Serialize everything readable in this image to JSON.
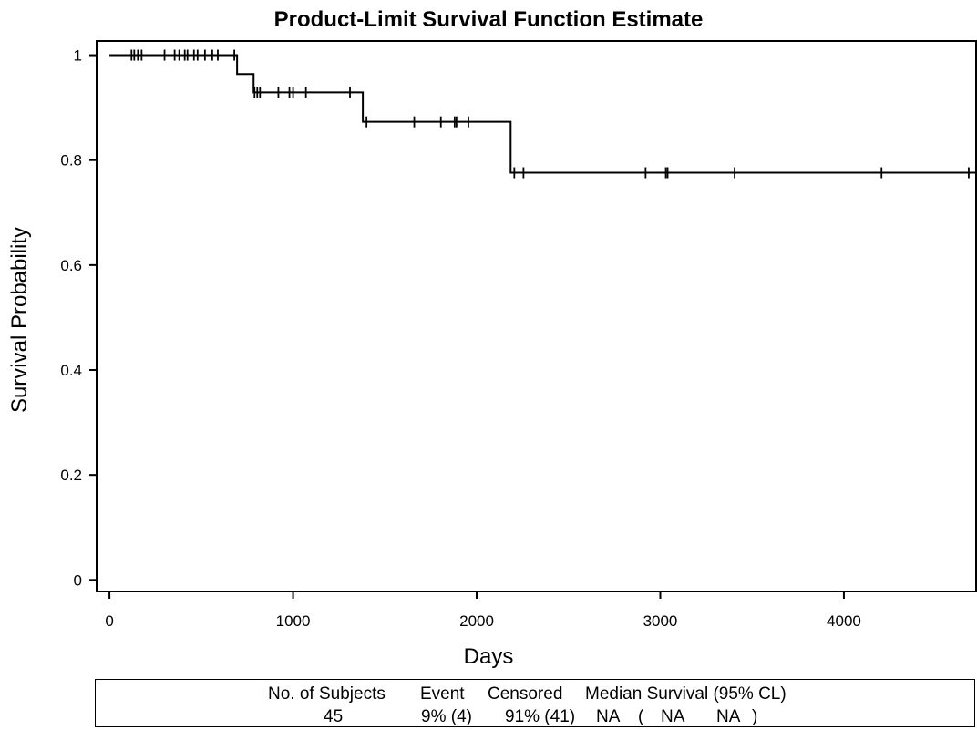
{
  "chart_data": {
    "type": "line",
    "title": "Product-Limit Survival Function Estimate",
    "xlabel": "Days",
    "ylabel": "Survival Probability",
    "xlim": [
      -70,
      4720
    ],
    "ylim": [
      -0.022,
      1.027
    ],
    "xticks": [
      0,
      1000,
      2000,
      3000,
      4000
    ],
    "xtick_labels": [
      "0",
      "1000",
      "2000",
      "3000",
      "4000"
    ],
    "yticks": [
      0,
      0.2,
      0.4,
      0.6,
      0.8,
      1
    ],
    "ytick_labels": [
      "0",
      "0.2",
      "0.4",
      "0.6",
      "0.8",
      "1"
    ],
    "grid": false,
    "series": [
      {
        "step_times": [
          0,
          695,
          785,
          1380,
          2185,
          4720
        ],
        "survival": [
          1.0,
          0.964,
          0.929,
          0.873,
          0.776,
          0.776
        ],
        "censored": [
          {
            "x": 120,
            "y": 1.0
          },
          {
            "x": 135,
            "y": 1.0
          },
          {
            "x": 155,
            "y": 1.0
          },
          {
            "x": 175,
            "y": 1.0
          },
          {
            "x": 300,
            "y": 1.0
          },
          {
            "x": 355,
            "y": 1.0
          },
          {
            "x": 380,
            "y": 1.0
          },
          {
            "x": 410,
            "y": 1.0
          },
          {
            "x": 425,
            "y": 1.0
          },
          {
            "x": 460,
            "y": 1.0
          },
          {
            "x": 480,
            "y": 1.0
          },
          {
            "x": 520,
            "y": 1.0
          },
          {
            "x": 560,
            "y": 1.0
          },
          {
            "x": 590,
            "y": 1.0
          },
          {
            "x": 680,
            "y": 1.0
          },
          {
            "x": 790,
            "y": 0.929
          },
          {
            "x": 805,
            "y": 0.929
          },
          {
            "x": 820,
            "y": 0.929
          },
          {
            "x": 920,
            "y": 0.929
          },
          {
            "x": 980,
            "y": 0.929
          },
          {
            "x": 1000,
            "y": 0.929
          },
          {
            "x": 1070,
            "y": 0.929
          },
          {
            "x": 1310,
            "y": 0.929
          },
          {
            "x": 1400,
            "y": 0.873
          },
          {
            "x": 1660,
            "y": 0.873
          },
          {
            "x": 1805,
            "y": 0.873
          },
          {
            "x": 1880,
            "y": 0.873
          },
          {
            "x": 1890,
            "y": 0.873
          },
          {
            "x": 1955,
            "y": 0.873
          },
          {
            "x": 2205,
            "y": 0.776
          },
          {
            "x": 2255,
            "y": 0.776
          },
          {
            "x": 2920,
            "y": 0.776
          },
          {
            "x": 3030,
            "y": 0.776
          },
          {
            "x": 3040,
            "y": 0.776
          },
          {
            "x": 3405,
            "y": 0.776
          },
          {
            "x": 4205,
            "y": 0.776
          },
          {
            "x": 4680,
            "y": 0.776
          }
        ]
      }
    ]
  },
  "summary_table": {
    "headers": [
      "No. of Subjects",
      "Event",
      "Censored",
      "Median Survival (95% CL)"
    ],
    "subjects": "45",
    "event": "9% (4)",
    "censored": "91% (41)",
    "median": "NA",
    "ci_open": "(",
    "ci_lower": "NA",
    "ci_upper": "NA",
    "ci_close": ")"
  }
}
